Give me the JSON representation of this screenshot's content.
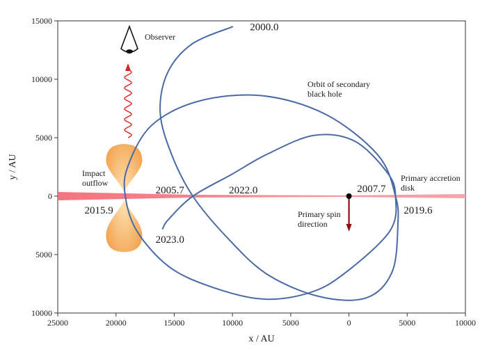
{
  "axes": {
    "x": {
      "label": "x / AU",
      "min": -10000,
      "max": 25000,
      "reversed": true,
      "ticks": [
        25000,
        20000,
        15000,
        10000,
        5000,
        0,
        -5000,
        -10000
      ],
      "tick_labels": [
        "25000",
        "20000",
        "15000",
        "10000",
        "5000",
        "0",
        "5000",
        "10000"
      ]
    },
    "y": {
      "label": "y / AU",
      "min": -10000,
      "max": 15000,
      "ticks": [
        15000,
        10000,
        5000,
        0,
        -5000,
        -10000
      ],
      "tick_labels": [
        "15000",
        "10000",
        "5000",
        "0",
        "5000",
        "10000"
      ]
    },
    "grid": false
  },
  "orbit": {
    "color": "#4a6aa6",
    "points": [
      [
        10000,
        14500
      ],
      [
        13500,
        13000
      ],
      [
        15600,
        10500
      ],
      [
        16200,
        7100
      ],
      [
        15200,
        3500
      ],
      [
        13400,
        0
      ],
      [
        10500,
        -3500
      ],
      [
        7000,
        -6700
      ],
      [
        2500,
        -8600
      ],
      [
        -1500,
        -8700
      ],
      [
        -3700,
        -6500
      ],
      [
        -4200,
        -2500
      ],
      [
        -4000,
        0
      ],
      [
        -2500,
        3500
      ],
      [
        2000,
        7000
      ],
      [
        7500,
        8600
      ],
      [
        13000,
        8100
      ],
      [
        17000,
        6000
      ],
      [
        19000,
        2500
      ],
      [
        19200,
        0
      ],
      [
        18200,
        -3000
      ],
      [
        15500,
        -6000
      ],
      [
        12000,
        -7700
      ],
      [
        7500,
        -8800
      ],
      [
        3500,
        -8300
      ],
      [
        500,
        -6700
      ],
      [
        -3500,
        -3000
      ],
      [
        -4000,
        0
      ],
      [
        -3300,
        2000
      ],
      [
        -500,
        4700
      ],
      [
        3000,
        5200
      ],
      [
        7000,
        3600
      ],
      [
        10000,
        1900
      ],
      [
        13400,
        0
      ],
      [
        15500,
        -2000
      ],
      [
        16000,
        -2800
      ]
    ]
  },
  "epochs": [
    {
      "label": "2000.0",
      "x": 8500,
      "y": 14500
    },
    {
      "label": "2005.7",
      "x": 16600,
      "y": 550
    },
    {
      "label": "2022.0",
      "x": 10300,
      "y": 550
    },
    {
      "label": "2007.7",
      "x": -700,
      "y": 650
    },
    {
      "label": "2019.6",
      "x": -4700,
      "y": -1200
    },
    {
      "label": "2015.9",
      "x": 22700,
      "y": -1200
    },
    {
      "label": "2023.0",
      "x": 16600,
      "y": -3700
    }
  ],
  "annotations": {
    "observer": "Observer",
    "orbit_line1": "Orbit of secondary",
    "orbit_line2": "black hole",
    "accretion_line1": "Primary accretion",
    "accretion_line2": "disk",
    "spin_line1": "Primary spin",
    "spin_line2": "direction",
    "outflow_line1": "Impact",
    "outflow_line2": "outflow"
  },
  "colors": {
    "orbit": "#4a6aa6",
    "disk": "#f0707a",
    "outflow_light": "#fcd79a",
    "outflow_dark": "#f2a048",
    "wave": "#e02020",
    "spin_arrow": "#8b1010",
    "primary_dot": "#000000",
    "axis": "#333333"
  }
}
